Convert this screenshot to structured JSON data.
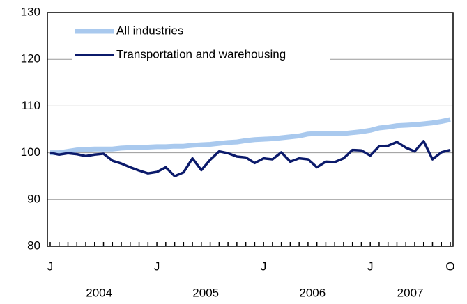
{
  "chart_data": {
    "type": "line",
    "categories": [
      "J",
      null,
      null,
      null,
      null,
      null,
      null,
      null,
      null,
      null,
      null,
      null,
      "J",
      null,
      null,
      null,
      null,
      null,
      null,
      null,
      null,
      null,
      null,
      null,
      "J",
      null,
      null,
      null,
      null,
      null,
      null,
      null,
      null,
      null,
      null,
      null,
      "J",
      null,
      null,
      null,
      null,
      null,
      null,
      null,
      null,
      "O"
    ],
    "x_groups": [
      "2004",
      "2005",
      "2006",
      "2007"
    ],
    "series": [
      {
        "name": "All industries",
        "color": "#a9c9ee",
        "values": [
          100.0,
          100.0,
          100.3,
          100.6,
          100.7,
          100.8,
          100.8,
          100.8,
          101.0,
          101.1,
          101.2,
          101.2,
          101.3,
          101.3,
          101.4,
          101.4,
          101.6,
          101.7,
          101.8,
          102.0,
          102.2,
          102.3,
          102.6,
          102.8,
          102.9,
          103.0,
          103.2,
          103.4,
          103.6,
          104.0,
          104.1,
          104.1,
          104.1,
          104.1,
          104.3,
          104.5,
          104.8,
          105.3,
          105.5,
          105.8,
          105.9,
          106.0,
          106.2,
          106.4,
          106.7,
          107.1
        ]
      },
      {
        "name": "Transportation and warehousing",
        "color": "#0b1a6b",
        "values": [
          100.0,
          99.6,
          99.9,
          99.7,
          99.3,
          99.6,
          99.8,
          98.3,
          97.7,
          96.9,
          96.2,
          95.6,
          95.9,
          96.9,
          95.0,
          95.8,
          98.8,
          96.3,
          98.5,
          100.3,
          99.9,
          99.2,
          99.0,
          97.8,
          98.8,
          98.6,
          100.1,
          98.1,
          98.8,
          98.6,
          96.9,
          98.1,
          98.0,
          98.8,
          100.6,
          100.5,
          99.4,
          101.4,
          101.5,
          102.3,
          101.1,
          100.3,
          102.5,
          98.6,
          100.1,
          100.6
        ]
      }
    ],
    "ylim": [
      80,
      130
    ],
    "yticks": [
      80,
      90,
      100,
      110,
      120,
      130
    ],
    "grid": true,
    "legend": "top-left"
  }
}
